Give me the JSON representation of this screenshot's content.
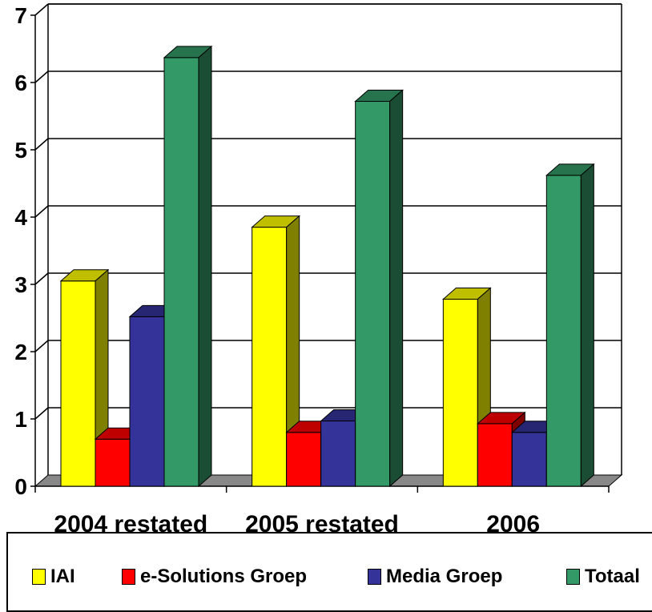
{
  "chart_data": {
    "type": "bar",
    "title": "",
    "xlabel": "",
    "ylabel": "",
    "categories": [
      "2004 restated",
      "2005 restated",
      "2006"
    ],
    "ylim": [
      0,
      7
    ],
    "yticks": [
      "0",
      "1",
      "2",
      "3",
      "4",
      "5",
      "6",
      "7"
    ],
    "grid": true,
    "legend_position": "bottom",
    "three_d": true,
    "series": [
      {
        "name": "IAI",
        "values": [
          3.05,
          3.85,
          2.78
        ],
        "color": "#FFFF00"
      },
      {
        "name": "e-Solutions Groep",
        "values": [
          0.7,
          0.8,
          0.93
        ],
        "color": "#FF0000"
      },
      {
        "name": "Media Groep",
        "values": [
          2.52,
          0.97,
          0.8
        ],
        "color": "#333399"
      },
      {
        "name": "Totaal",
        "values": [
          6.37,
          5.72,
          4.62
        ],
        "color": "#339966"
      }
    ]
  }
}
